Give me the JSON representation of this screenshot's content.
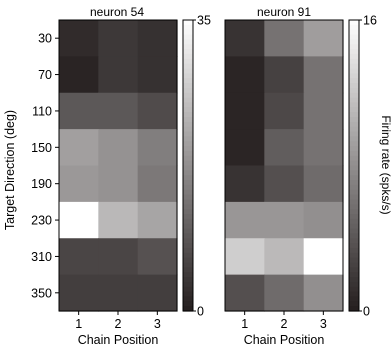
{
  "chart_data": [
    {
      "type": "heatmap",
      "title": "neuron 54",
      "xlabel": "Chain Position",
      "ylabel": "Target Direction (deg)",
      "x_categories": [
        "1",
        "2",
        "3"
      ],
      "y_categories": [
        "30",
        "70",
        "110",
        "150",
        "190",
        "230",
        "310",
        "350"
      ],
      "values": [
        [
          2,
          4,
          3
        ],
        [
          1,
          4,
          3
        ],
        [
          9,
          9,
          7
        ],
        [
          20,
          18,
          15
        ],
        [
          19,
          18,
          14
        ],
        [
          35,
          24,
          21
        ],
        [
          6,
          6,
          8
        ],
        [
          5,
          5,
          5
        ]
      ],
      "colorbar": {
        "min": 0,
        "max": 35,
        "tick_labels": [
          "0",
          "35"
        ]
      }
    },
    {
      "type": "heatmap",
      "title": "neuron 91",
      "xlabel": "Chain Position",
      "ylabel": "",
      "x_categories": [
        "1",
        "2",
        "3"
      ],
      "y_categories": [
        "30",
        "70",
        "110",
        "150",
        "190",
        "230",
        "310",
        "350"
      ],
      "values": [
        [
          1.5,
          6,
          9
        ],
        [
          0.5,
          2.5,
          6
        ],
        [
          0.5,
          3,
          6
        ],
        [
          0.5,
          4.5,
          6
        ],
        [
          1.5,
          3.5,
          5.5
        ],
        [
          8.5,
          8.5,
          8
        ],
        [
          12.5,
          11,
          16
        ],
        [
          3.5,
          5.5,
          8
        ]
      ],
      "colorbar": {
        "min": 0,
        "max": 16,
        "tick_labels": [
          "0",
          "16"
        ],
        "label": "Firing rate (spks/s)"
      }
    }
  ]
}
